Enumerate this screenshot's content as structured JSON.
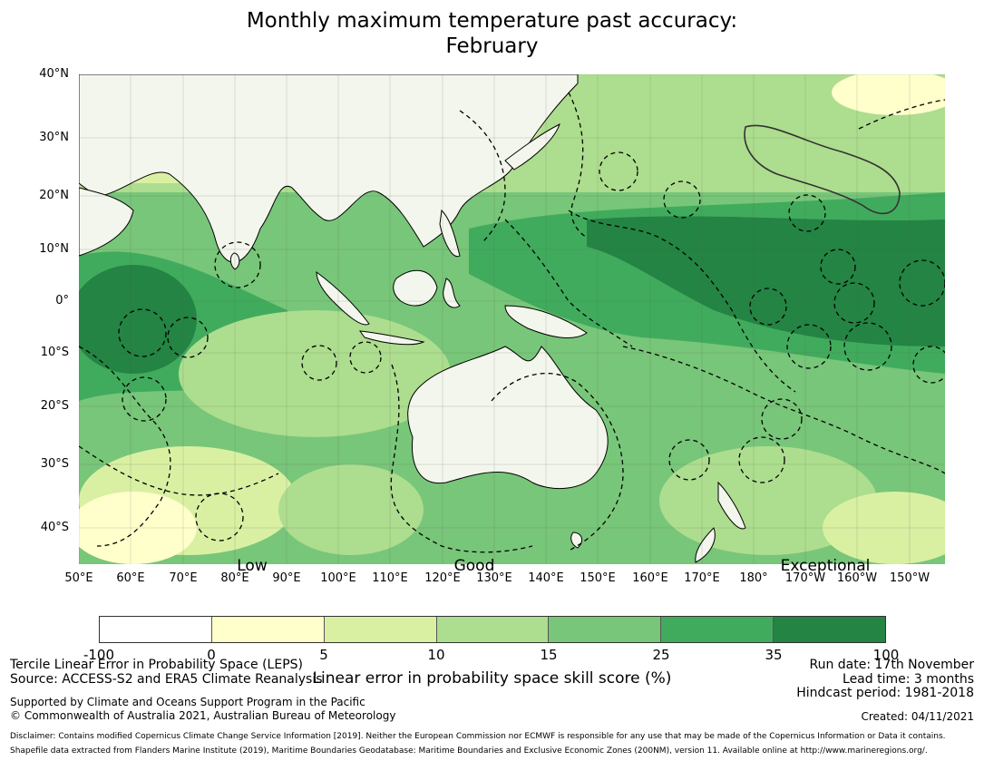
{
  "title": {
    "line1": "Monthly maximum temperature past accuracy:",
    "line2": "February"
  },
  "map": {
    "lat_labels": [
      "40°N",
      "30°N",
      "20°N",
      "10°N",
      "0°",
      "10°S",
      "20°S",
      "30°S",
      "40°S"
    ],
    "lon_labels": [
      "50°E",
      "60°E",
      "70°E",
      "80°E",
      "90°E",
      "100°E",
      "110°E",
      "120°E",
      "130°E",
      "140°E",
      "150°E",
      "160°E",
      "170°E",
      "180°",
      "170°W",
      "160°W",
      "150°W"
    ],
    "skill_labels": {
      "low": "Low",
      "good": "Good",
      "exceptional": "Exceptional"
    },
    "land_color": "#f3f6ec",
    "ocean_colors": [
      "#ffffcc",
      "#d9f0a3",
      "#addd8e",
      "#78c679",
      "#41ab5d",
      "#238443"
    ]
  },
  "colorbar": {
    "bins": [
      "#ffffff",
      "#ffffcc",
      "#d9f0a3",
      "#addd8e",
      "#78c679",
      "#41ab5d",
      "#238443"
    ],
    "ticks": [
      "-100",
      "0",
      "5",
      "10",
      "15",
      "25",
      "35",
      "100"
    ],
    "label": "Linear error in probability space skill score (%)"
  },
  "footer": {
    "method": "Tercile Linear Error in Probability Space (LEPS)",
    "source": "Source: ACCESS-S2 and ERA5 Climate Reanalysis",
    "supported": "Supported by Climate and Oceans Support Program in the Pacific",
    "copyright": "© Commonwealth of Australia 2021, Australian Bureau of Meteorology",
    "disclaimer": "Disclaimer: Contains modified Copernicus Climate Change Service Information [2019]. Neither the European Commission nor ECMWF is responsible for any use that may be made of the Copernicus Information or Data it contains.",
    "shapefile": "Shapefile data extracted from Flanders Marine Institute (2019), Maritime Boundaries Geodatabase: Maritime Boundaries and Exclusive Economic Zones (200NM), version 11. Available online at http://www.marineregions.org/.",
    "run_date": "Run date: 17th November",
    "lead_time": "Lead time: 3 months",
    "hindcast": "Hindcast period: 1981-2018",
    "created": "Created: 04/11/2021"
  }
}
